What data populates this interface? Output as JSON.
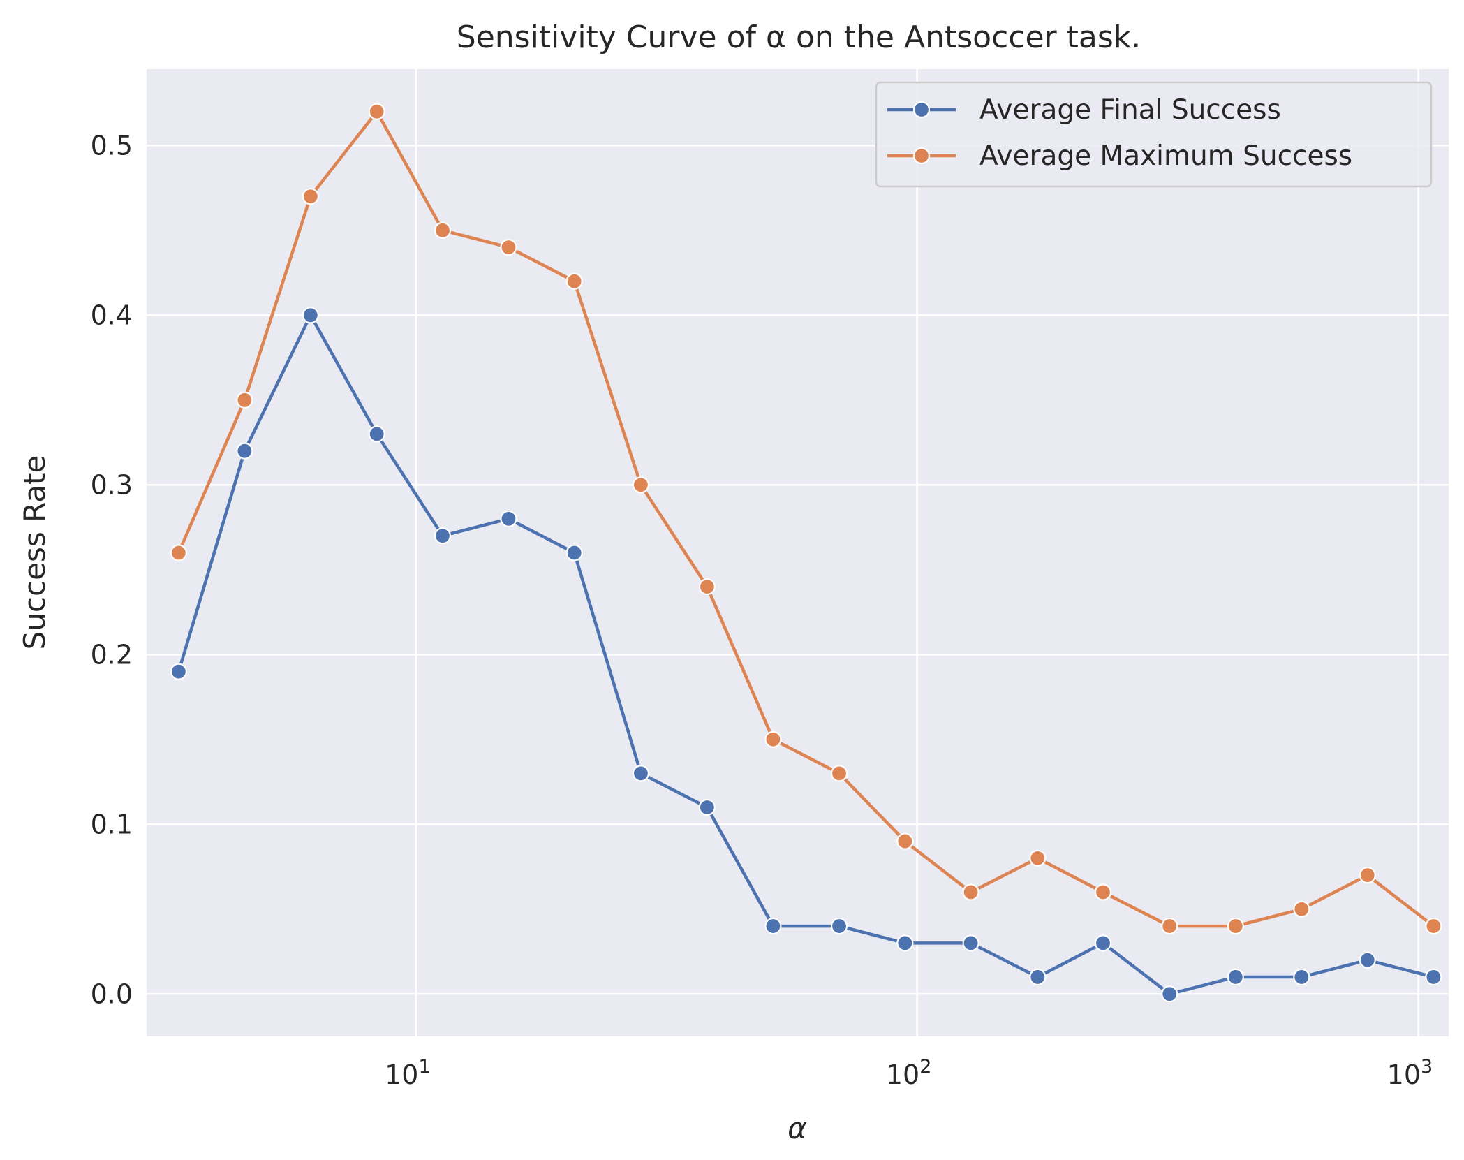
{
  "chart_data": {
    "type": "line",
    "title": "Sensitivity Curve of α on the Antsoccer task.",
    "xlabel": "α",
    "ylabel": "Success Rate",
    "xscale": "log",
    "xlim": [
      2.9,
      1150
    ],
    "ylim": [
      -0.025,
      0.545
    ],
    "yticks": [
      0.0,
      0.1,
      0.2,
      0.3,
      0.4,
      0.5
    ],
    "ytick_labels": [
      "0.0",
      "0.1",
      "0.2",
      "0.3",
      "0.4",
      "0.5"
    ],
    "xticks": [
      {
        "value": 10,
        "base": "10",
        "exp": "1"
      },
      {
        "value": 100,
        "base": "10",
        "exp": "2"
      },
      {
        "value": 1000,
        "base": "10",
        "exp": "3"
      }
    ],
    "grid": true,
    "legend_position": "top-right",
    "x": [
      3.36,
      4.55,
      6.16,
      8.35,
      11.3,
      15.3,
      20.7,
      28.1,
      38.1,
      51.6,
      69.9,
      94.6,
      128,
      174,
      235,
      319,
      432,
      585,
      792,
      1073
    ],
    "series": [
      {
        "name": "Average Final Success",
        "color": "#4c72b0",
        "values": [
          0.19,
          0.32,
          0.4,
          0.33,
          0.27,
          0.28,
          0.26,
          0.13,
          0.11,
          0.04,
          0.04,
          0.03,
          0.03,
          0.01,
          0.03,
          0.0,
          0.01,
          0.01,
          0.02,
          0.01
        ]
      },
      {
        "name": "Average Maximum Success",
        "color": "#dd8452",
        "values": [
          0.26,
          0.35,
          0.47,
          0.52,
          0.45,
          0.44,
          0.42,
          0.3,
          0.24,
          0.15,
          0.13,
          0.09,
          0.06,
          0.08,
          0.06,
          0.04,
          0.04,
          0.05,
          0.07,
          0.04
        ]
      }
    ]
  }
}
